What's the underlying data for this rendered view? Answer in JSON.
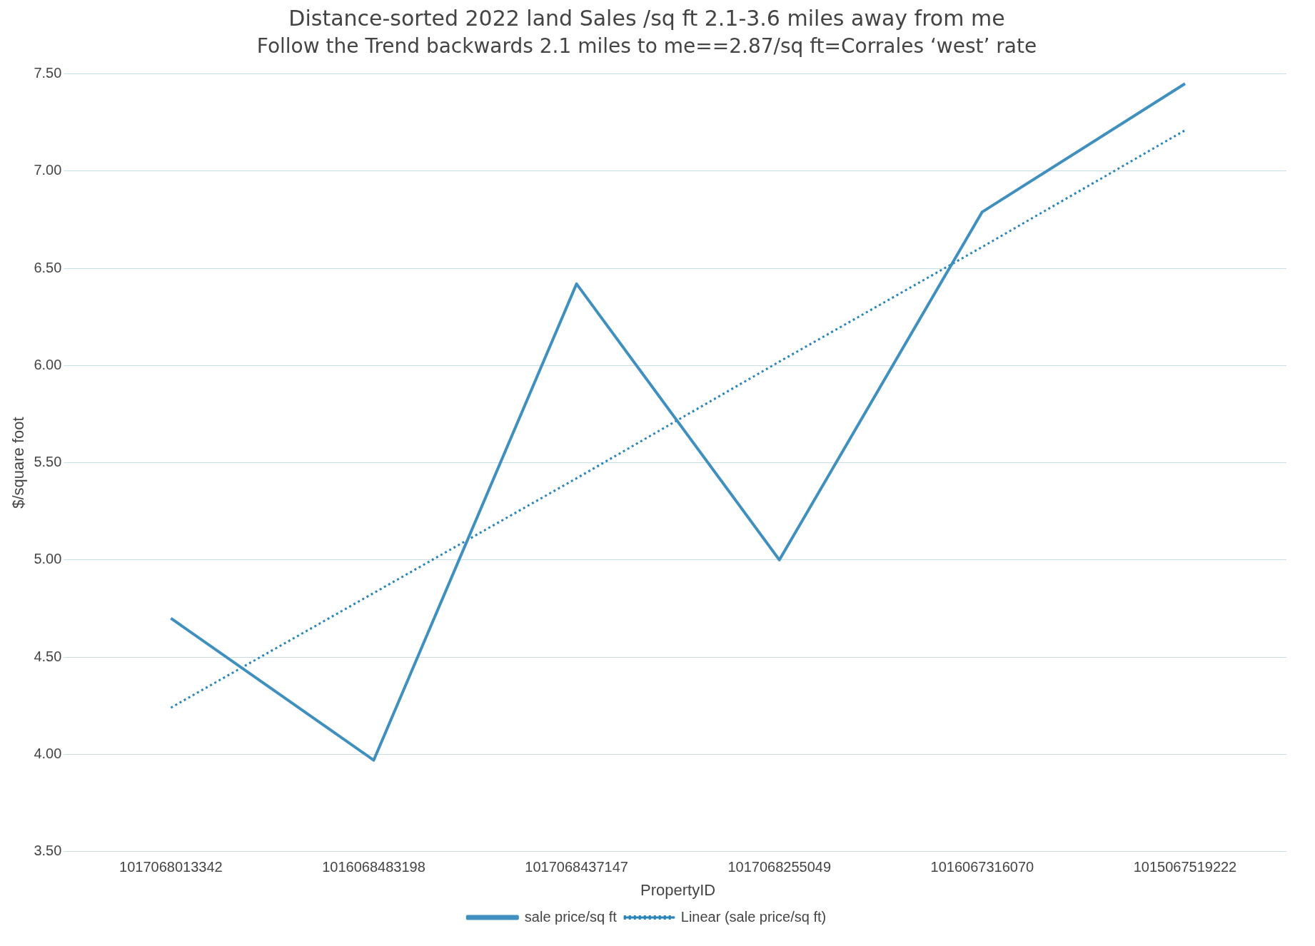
{
  "chart_data": {
    "type": "line",
    "title": "Distance-sorted 2022 land Sales /sq ft 2.1-3.6 miles away from me",
    "subtitle": "Follow the Trend backwards 2.1 miles to me==2.87/sq ft=Corrales ‘west’ rate",
    "xlabel": "PropertyID",
    "ylabel": "$/square foot",
    "categories": [
      "1017068013342",
      "1016068483198",
      "1017068437147",
      "1017068255049",
      "1016067316070",
      "1015067519222"
    ],
    "series": [
      {
        "name": "sale price/sq ft",
        "color": "#3f8fbf",
        "values": [
          4.7,
          3.97,
          6.42,
          5.0,
          6.79,
          7.45
        ],
        "line_style": "solid"
      },
      {
        "name": "Linear (sale price/sq ft)",
        "color": "#2a85b8",
        "type": "line",
        "values": [
          4.24,
          4.83,
          5.42,
          6.02,
          6.61,
          7.21
        ],
        "line_style": "dotted"
      }
    ],
    "ylim": [
      3.5,
      7.5
    ],
    "yticks": [
      {
        "value": 3.5,
        "label": "3.50"
      },
      {
        "value": 4,
        "label": "4.00"
      },
      {
        "value": 4.5,
        "label": "4.50"
      },
      {
        "value": 5,
        "label": "5.00"
      },
      {
        "value": 5.5,
        "label": "5.50"
      },
      {
        "value": 6,
        "label": "6.00"
      },
      {
        "value": 6.5,
        "label": "6.50"
      },
      {
        "value": 7,
        "label": "7.00"
      },
      {
        "value": 7.5,
        "label": "7.50"
      }
    ],
    "grid": "y",
    "legend": "bottom",
    "marker": "none"
  }
}
